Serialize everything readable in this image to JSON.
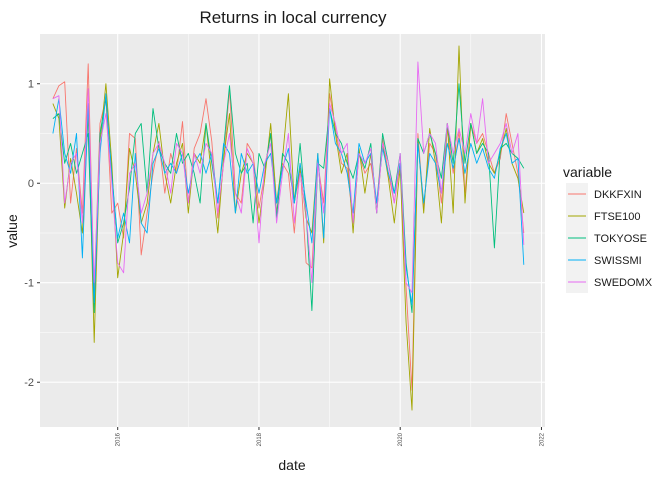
{
  "chart_data": {
    "type": "line",
    "title": "Returns in local currency",
    "xlabel": "date",
    "ylabel": "value",
    "xlim": [
      2014.9,
      2022.05
    ],
    "ylim": [
      -2.45,
      1.5
    ],
    "xticks": [
      2016,
      2018,
      2020,
      2022
    ],
    "xtick_labels": [
      "2016",
      "2018",
      "2020",
      "2022"
    ],
    "yticks": [
      1,
      0,
      -1,
      -2
    ],
    "ytick_labels": [
      "1",
      "0",
      "-1",
      "-2"
    ],
    "grid": true,
    "legend": {
      "title": "variable",
      "position": "right"
    },
    "x": [
      2015.083,
      2015.167,
      2015.25,
      2015.333,
      2015.417,
      2015.5,
      2015.583,
      2015.667,
      2015.75,
      2015.833,
      2015.917,
      2016.0,
      2016.083,
      2016.167,
      2016.25,
      2016.333,
      2016.417,
      2016.5,
      2016.583,
      2016.667,
      2016.75,
      2016.833,
      2016.917,
      2017.0,
      2017.083,
      2017.167,
      2017.25,
      2017.333,
      2017.417,
      2017.5,
      2017.583,
      2017.667,
      2017.75,
      2017.833,
      2017.917,
      2018.0,
      2018.083,
      2018.167,
      2018.25,
      2018.333,
      2018.417,
      2018.5,
      2018.583,
      2018.667,
      2018.75,
      2018.833,
      2018.917,
      2019.0,
      2019.083,
      2019.167,
      2019.25,
      2019.333,
      2019.417,
      2019.5,
      2019.583,
      2019.667,
      2019.75,
      2019.833,
      2019.917,
      2020.0,
      2020.083,
      2020.167,
      2020.25,
      2020.333,
      2020.417,
      2020.5,
      2020.583,
      2020.667,
      2020.75,
      2020.833,
      2020.917,
      2021.0,
      2021.083,
      2021.167,
      2021.25,
      2021.333,
      2021.417,
      2021.5,
      2021.583,
      2021.667,
      2021.75
    ],
    "series": [
      {
        "name": "DKKFXIN",
        "color": "#F8766D",
        "values": [
          0.85,
          0.98,
          1.02,
          -0.2,
          0.35,
          -0.3,
          1.2,
          -1.1,
          0.6,
          0.85,
          -0.3,
          -0.2,
          -0.55,
          0.5,
          0.45,
          -0.72,
          -0.3,
          0.1,
          0.42,
          -0.1,
          0.3,
          0.1,
          0.62,
          -0.2,
          0.35,
          0.5,
          0.85,
          0.42,
          -0.35,
          0.2,
          0.95,
          -0.1,
          -0.2,
          0.4,
          0.3,
          -0.25,
          0.1,
          0.5,
          -0.3,
          0.2,
          0.1,
          -0.5,
          0.2,
          -0.8,
          -0.85,
          0.2,
          -0.2,
          0.9,
          0.55,
          0.2,
          0.15,
          -0.4,
          0.3,
          0.1,
          0.2,
          -0.2,
          0.45,
          0.1,
          -0.2,
          0.2,
          -1.05,
          -2.08,
          0.5,
          -0.25,
          0.4,
          0.3,
          -0.2,
          0.55,
          0.1,
          0.52,
          -0.1,
          0.6,
          0.4,
          0.5,
          0.3,
          0.1,
          0.25,
          0.7,
          0.4,
          0.1,
          -0.5
        ]
      },
      {
        "name": "FTSE100",
        "color": "#A3A500",
        "values": [
          0.8,
          0.65,
          -0.25,
          0.25,
          -0.1,
          -0.5,
          0.7,
          -1.6,
          0.4,
          1.0,
          0.2,
          -0.95,
          -0.5,
          0.35,
          0.1,
          -0.4,
          -0.2,
          0.3,
          0.6,
          0.1,
          -0.2,
          0.2,
          0.4,
          -0.3,
          0.3,
          0.2,
          0.6,
          0.05,
          -0.5,
          0.25,
          0.7,
          -0.3,
          0.1,
          0.3,
          0.2,
          -0.4,
          0.05,
          0.6,
          -0.2,
          0.25,
          0.9,
          -0.2,
          0.15,
          -0.35,
          -0.5,
          0.3,
          -0.6,
          1.05,
          0.5,
          0.1,
          0.3,
          -0.5,
          0.35,
          -0.1,
          0.3,
          -0.3,
          0.4,
          0.05,
          -0.4,
          0.15,
          -1.4,
          -2.28,
          0.45,
          -0.3,
          0.55,
          0.2,
          -0.4,
          0.6,
          -0.3,
          1.38,
          -0.2,
          0.6,
          0.3,
          0.45,
          0.2,
          0.1,
          0.3,
          0.55,
          0.2,
          0.05,
          -0.3
        ]
      },
      {
        "name": "TOKYOSE",
        "color": "#00BF7D",
        "values": [
          0.65,
          0.7,
          0.2,
          0.4,
          0.1,
          0.3,
          0.5,
          -1.3,
          0.5,
          0.85,
          0.1,
          -0.6,
          -0.4,
          -0.05,
          0.5,
          0.6,
          -0.1,
          0.75,
          0.35,
          0.2,
          0.1,
          0.5,
          0.2,
          0.3,
          0.1,
          -0.2,
          0.6,
          0.2,
          -0.2,
          0.35,
          0.98,
          0.3,
          0.1,
          0.2,
          -0.4,
          0.3,
          0.15,
          0.5,
          -0.35,
          0.3,
          0.2,
          -0.2,
          0.4,
          -0.3,
          -1.28,
          0.2,
          0.15,
          0.75,
          0.5,
          0.4,
          0.2,
          0.05,
          0.3,
          0.15,
          0.4,
          -0.3,
          0.5,
          0.2,
          -0.1,
          0.3,
          -0.8,
          -1.3,
          0.45,
          0.3,
          0.5,
          0.3,
          0.05,
          0.6,
          0.2,
          1.0,
          0.2,
          0.6,
          0.3,
          0.4,
          0.3,
          -0.65,
          0.35,
          0.4,
          0.3,
          0.25,
          0.15
        ]
      },
      {
        "name": "SWISSMI",
        "color": "#00B0F6",
        "values": [
          0.5,
          0.85,
          0.3,
          0.1,
          0.5,
          -0.75,
          0.8,
          -1.2,
          0.3,
          0.9,
          0.05,
          -0.55,
          -0.3,
          -0.6,
          0.3,
          -0.4,
          -0.5,
          0.2,
          0.35,
          0.1,
          0.2,
          0.1,
          0.3,
          -0.1,
          0.2,
          0.3,
          0.1,
          0.3,
          -0.2,
          0.4,
          0.3,
          -0.3,
          0.3,
          0.1,
          0.2,
          -0.1,
          0.2,
          0.3,
          -0.2,
          0.15,
          0.35,
          -0.2,
          0.2,
          -0.2,
          -0.6,
          0.3,
          -0.55,
          0.75,
          0.4,
          0.3,
          0.1,
          -0.3,
          0.4,
          0.2,
          0.3,
          -0.2,
          0.35,
          0.1,
          -0.1,
          0.2,
          -0.85,
          -1.22,
          0.4,
          -0.2,
          0.3,
          0.2,
          -0.1,
          0.4,
          0.15,
          0.45,
          0.1,
          0.4,
          0.2,
          0.35,
          0.15,
          0.05,
          0.35,
          0.5,
          0.2,
          0.25,
          -0.82
        ]
      },
      {
        "name": "SWEDOMX",
        "color": "#E76BF3",
        "values": [
          0.85,
          0.88,
          -0.2,
          0.2,
          0.3,
          -0.4,
          0.95,
          -1.0,
          0.4,
          0.7,
          0.0,
          -0.8,
          -0.9,
          0.1,
          0.2,
          -0.3,
          -0.1,
          0.3,
          0.4,
          0.2,
          -0.1,
          0.4,
          0.3,
          -0.2,
          0.3,
          0.1,
          0.4,
          0.3,
          -0.3,
          0.2,
          0.5,
          -0.1,
          -0.3,
          0.35,
          0.2,
          -0.6,
          0.2,
          0.4,
          -0.4,
          0.1,
          0.5,
          -0.4,
          0.1,
          -0.3,
          -1.0,
          0.2,
          -0.3,
          0.8,
          0.6,
          0.3,
          0.4,
          -0.4,
          0.3,
          0.2,
          0.35,
          -0.3,
          0.4,
          0.2,
          -0.2,
          0.3,
          -1.0,
          -1.1,
          1.22,
          0.3,
          0.5,
          0.4,
          -0.1,
          0.6,
          0.3,
          0.55,
          0.3,
          0.7,
          0.4,
          0.85,
          0.2,
          0.3,
          0.4,
          0.6,
          0.3,
          0.5,
          -0.62
        ]
      }
    ]
  }
}
